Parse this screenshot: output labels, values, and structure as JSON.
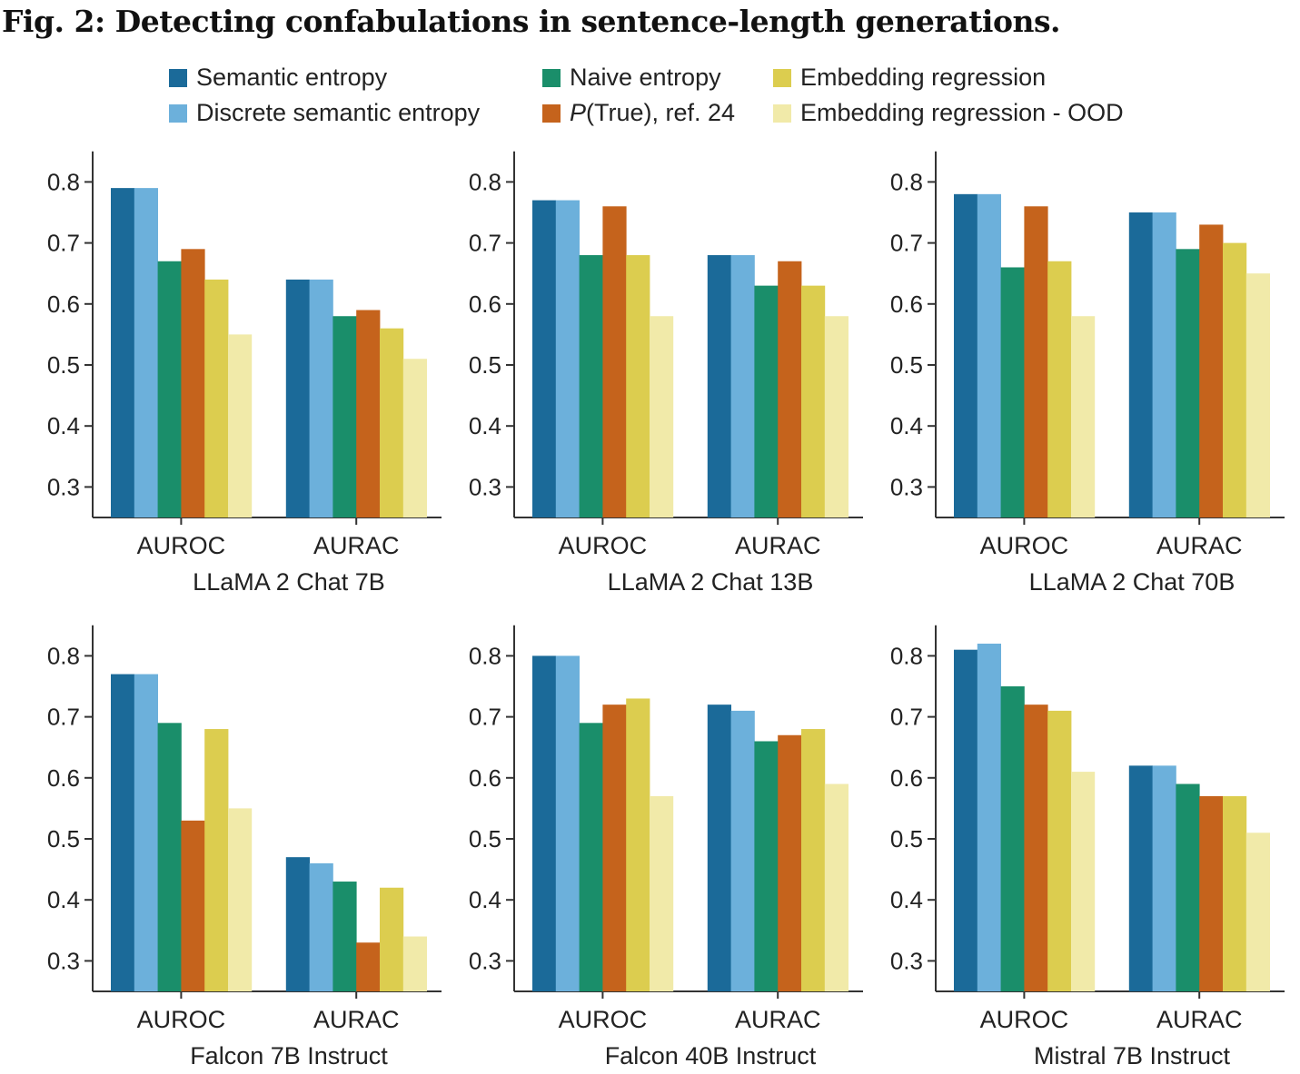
{
  "figure": {
    "title": "Fig. 2: Detecting confabulations in sentence-length generations."
  },
  "legend": [
    {
      "label_main": "Semantic entropy",
      "label_italic": "",
      "color": "#1b6a99"
    },
    {
      "label_main": "Discrete semantic entropy",
      "label_italic": "",
      "color": "#6cb0db"
    },
    {
      "label_main": "Naive entropy",
      "label_italic": "",
      "color": "#1a8e6a"
    },
    {
      "label_main": "(True), ref. 24",
      "label_italic": "P",
      "color": "#c5631c"
    },
    {
      "label_main": "Embedding regression",
      "label_italic": "",
      "color": "#dccd4f"
    },
    {
      "label_main": "Embedding regression - OOD",
      "label_italic": "",
      "color": "#f1eaa9"
    }
  ],
  "chart_data": [
    {
      "type": "bar",
      "title": "LLaMA 2 Chat 7B",
      "categories": [
        "AUROC",
        "AURAC"
      ],
      "ylim": [
        0.25,
        0.85
      ],
      "yticks": [
        "0.3",
        "0.4",
        "0.5",
        "0.6",
        "0.7",
        "0.8"
      ],
      "series": [
        {
          "name": "Semantic entropy",
          "values": [
            0.79,
            0.64
          ]
        },
        {
          "name": "Discrete semantic entropy",
          "values": [
            0.79,
            0.64
          ]
        },
        {
          "name": "Naive entropy",
          "values": [
            0.67,
            0.58
          ]
        },
        {
          "name": "P(True), ref. 24",
          "values": [
            0.69,
            0.59
          ]
        },
        {
          "name": "Embedding regression",
          "values": [
            0.64,
            0.56
          ]
        },
        {
          "name": "Embedding regression - OOD",
          "values": [
            0.55,
            0.51
          ]
        }
      ]
    },
    {
      "type": "bar",
      "title": "LLaMA 2 Chat 13B",
      "categories": [
        "AUROC",
        "AURAC"
      ],
      "ylim": [
        0.25,
        0.85
      ],
      "yticks": [
        "0.3",
        "0.4",
        "0.5",
        "0.6",
        "0.7",
        "0.8"
      ],
      "series": [
        {
          "name": "Semantic entropy",
          "values": [
            0.77,
            0.68
          ]
        },
        {
          "name": "Discrete semantic entropy",
          "values": [
            0.77,
            0.68
          ]
        },
        {
          "name": "Naive entropy",
          "values": [
            0.68,
            0.63
          ]
        },
        {
          "name": "P(True), ref. 24",
          "values": [
            0.76,
            0.67
          ]
        },
        {
          "name": "Embedding regression",
          "values": [
            0.68,
            0.63
          ]
        },
        {
          "name": "Embedding regression - OOD",
          "values": [
            0.58,
            0.58
          ]
        }
      ]
    },
    {
      "type": "bar",
      "title": "LLaMA 2 Chat 70B",
      "categories": [
        "AUROC",
        "AURAC"
      ],
      "ylim": [
        0.25,
        0.85
      ],
      "yticks": [
        "0.3",
        "0.4",
        "0.5",
        "0.6",
        "0.7",
        "0.8"
      ],
      "series": [
        {
          "name": "Semantic entropy",
          "values": [
            0.78,
            0.75
          ]
        },
        {
          "name": "Discrete semantic entropy",
          "values": [
            0.78,
            0.75
          ]
        },
        {
          "name": "Naive entropy",
          "values": [
            0.66,
            0.69
          ]
        },
        {
          "name": "P(True), ref. 24",
          "values": [
            0.76,
            0.73
          ]
        },
        {
          "name": "Embedding regression",
          "values": [
            0.67,
            0.7
          ]
        },
        {
          "name": "Embedding regression - OOD",
          "values": [
            0.58,
            0.65
          ]
        }
      ]
    },
    {
      "type": "bar",
      "title": "Falcon 7B Instruct",
      "categories": [
        "AUROC",
        "AURAC"
      ],
      "ylim": [
        0.25,
        0.85
      ],
      "yticks": [
        "0.3",
        "0.4",
        "0.5",
        "0.6",
        "0.7",
        "0.8"
      ],
      "series": [
        {
          "name": "Semantic entropy",
          "values": [
            0.77,
            0.47
          ]
        },
        {
          "name": "Discrete semantic entropy",
          "values": [
            0.77,
            0.46
          ]
        },
        {
          "name": "Naive entropy",
          "values": [
            0.69,
            0.43
          ]
        },
        {
          "name": "P(True), ref. 24",
          "values": [
            0.53,
            0.33
          ]
        },
        {
          "name": "Embedding regression",
          "values": [
            0.68,
            0.42
          ]
        },
        {
          "name": "Embedding regression - OOD",
          "values": [
            0.55,
            0.34
          ]
        }
      ]
    },
    {
      "type": "bar",
      "title": "Falcon 40B Instruct",
      "categories": [
        "AUROC",
        "AURAC"
      ],
      "ylim": [
        0.25,
        0.85
      ],
      "yticks": [
        "0.3",
        "0.4",
        "0.5",
        "0.6",
        "0.7",
        "0.8"
      ],
      "series": [
        {
          "name": "Semantic entropy",
          "values": [
            0.8,
            0.72
          ]
        },
        {
          "name": "Discrete semantic entropy",
          "values": [
            0.8,
            0.71
          ]
        },
        {
          "name": "Naive entropy",
          "values": [
            0.69,
            0.66
          ]
        },
        {
          "name": "P(True), ref. 24",
          "values": [
            0.72,
            0.67
          ]
        },
        {
          "name": "Embedding regression",
          "values": [
            0.73,
            0.68
          ]
        },
        {
          "name": "Embedding regression - OOD",
          "values": [
            0.57,
            0.59
          ]
        }
      ]
    },
    {
      "type": "bar",
      "title": "Mistral 7B Instruct",
      "categories": [
        "AUROC",
        "AURAC"
      ],
      "ylim": [
        0.25,
        0.85
      ],
      "yticks": [
        "0.3",
        "0.4",
        "0.5",
        "0.6",
        "0.7",
        "0.8"
      ],
      "series": [
        {
          "name": "Semantic entropy",
          "values": [
            0.81,
            0.62
          ]
        },
        {
          "name": "Discrete semantic entropy",
          "values": [
            0.82,
            0.62
          ]
        },
        {
          "name": "Naive entropy",
          "values": [
            0.75,
            0.59
          ]
        },
        {
          "name": "P(True), ref. 24",
          "values": [
            0.72,
            0.57
          ]
        },
        {
          "name": "Embedding regression",
          "values": [
            0.71,
            0.57
          ]
        },
        {
          "name": "Embedding regression - OOD",
          "values": [
            0.61,
            0.51
          ]
        }
      ]
    }
  ]
}
